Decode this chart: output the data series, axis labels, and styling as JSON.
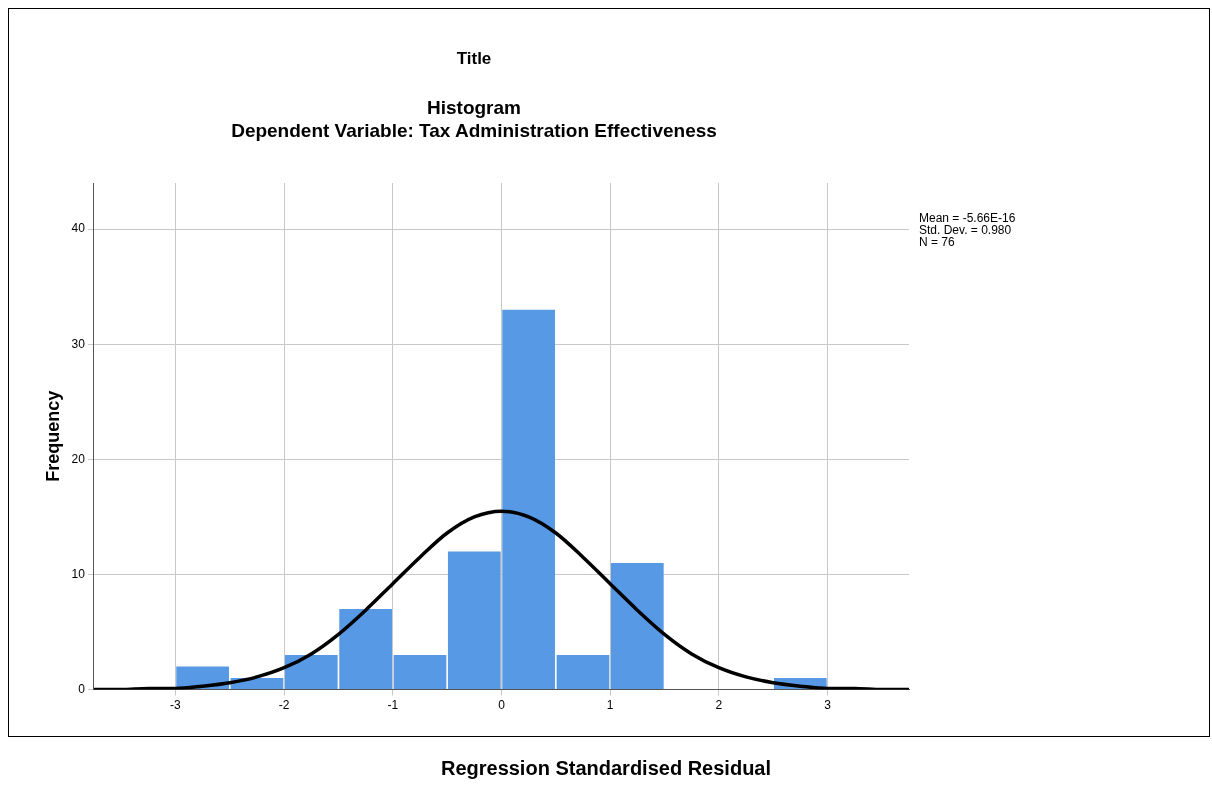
{
  "chart_data": {
    "type": "histogram",
    "title": "Title",
    "subtitle": "Histogram\nDependent Variable: Tax Administration Effectiveness",
    "xlabel": "Regression Standardised Residual",
    "ylabel": "Frequency",
    "bins": [
      -3,
      -2.5,
      -2,
      -1.5,
      -1,
      -0.5,
      0,
      0.5,
      1,
      1.5,
      2,
      2.5,
      3
    ],
    "series": [
      {
        "color": "#5799e4",
        "values": [
          2,
          1,
          3,
          7,
          3,
          12,
          33,
          3,
          11,
          0,
          0,
          1
        ]
      },
      {
        "type": "line",
        "color": "#000000",
        "x": [
          -3.75,
          -3.5,
          -3.25,
          -3,
          -2.75,
          -2.5,
          -2.25,
          -2,
          -1.75,
          -1.5,
          -1.25,
          -1,
          -0.75,
          -0.5,
          -0.25,
          0,
          0.25,
          0.5,
          0.75,
          1,
          1.25,
          1.5,
          1.75,
          2,
          2.25,
          2.5,
          2.75,
          3,
          3.25,
          3.5,
          3.75
        ],
        "values": [
          0,
          0,
          0.1,
          0.1,
          0.3,
          0.6,
          1.1,
          1.9,
          3.1,
          4.8,
          6.9,
          9.2,
          11.5,
          13.6,
          15,
          15.5,
          15,
          13.6,
          11.5,
          9.2,
          6.9,
          4.8,
          3.1,
          1.9,
          1.1,
          0.6,
          0.3,
          0.1,
          0.1,
          0,
          0
        ]
      }
    ],
    "xlim": [
      -3.75,
      3.75
    ],
    "ylim": [
      0,
      44
    ],
    "xticks": [
      -3,
      -2,
      -1,
      0,
      1,
      2,
      3
    ],
    "yticks": [
      0,
      10,
      20,
      30,
      40
    ],
    "grid": true,
    "marker": "none",
    "annotations": [
      "Mean = -5.66E-16",
      "Std. Dev. = 0.980",
      "N = 76"
    ]
  }
}
